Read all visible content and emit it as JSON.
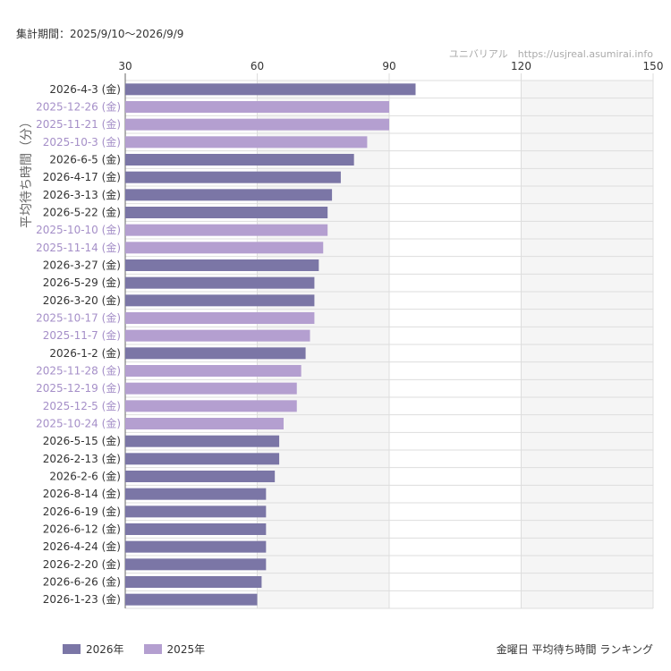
{
  "header": {
    "period": "集計期間：2025/9/10〜2026/9/9",
    "source": "ユニバリアル　https://usjreal.asumirai.info"
  },
  "caption": "金曜日 平均待ち時間 ランキング",
  "colors": {
    "2026": "#7b76a6",
    "2025": "#b49fd0",
    "label_2026": "#333333",
    "label_2025": "#a58fc8",
    "grid": "#dddddd",
    "band": "#f5f5f5"
  },
  "chart_data": {
    "type": "bar",
    "orientation": "horizontal",
    "ylabel": "平均待ち時間（分）",
    "xlim": [
      30,
      150
    ],
    "xticks": [
      "30",
      "60",
      "90",
      "120",
      "150"
    ],
    "legend_position": "bottom-left",
    "categories": [
      "2026-4-3 (金)",
      "2025-12-26 (金)",
      "2025-11-21 (金)",
      "2025-10-3 (金)",
      "2026-6-5 (金)",
      "2026-4-17 (金)",
      "2026-3-13 (金)",
      "2026-5-22 (金)",
      "2025-10-10 (金)",
      "2025-11-14 (金)",
      "2026-3-27 (金)",
      "2026-5-29 (金)",
      "2026-3-20 (金)",
      "2025-10-17 (金)",
      "2025-11-7 (金)",
      "2026-1-2 (金)",
      "2025-11-28 (金)",
      "2025-12-19 (金)",
      "2025-12-5 (金)",
      "2025-10-24 (金)",
      "2026-5-15 (金)",
      "2026-2-13 (金)",
      "2026-2-6 (金)",
      "2026-8-14 (金)",
      "2026-6-19 (金)",
      "2026-6-12 (金)",
      "2026-4-24 (金)",
      "2026-2-20 (金)",
      "2026-6-26 (金)",
      "2026-1-23 (金)"
    ],
    "values": [
      96,
      90,
      90,
      85,
      82,
      79,
      77,
      76,
      76,
      75,
      74,
      73,
      73,
      73,
      72,
      71,
      70,
      69,
      69,
      66,
      65,
      65,
      64,
      62,
      62,
      62,
      62,
      62,
      61,
      60
    ],
    "groups": [
      "2026",
      "2025",
      "2025",
      "2025",
      "2026",
      "2026",
      "2026",
      "2026",
      "2025",
      "2025",
      "2026",
      "2026",
      "2026",
      "2025",
      "2025",
      "2026",
      "2025",
      "2025",
      "2025",
      "2025",
      "2026",
      "2026",
      "2026",
      "2026",
      "2026",
      "2026",
      "2026",
      "2026",
      "2026",
      "2026"
    ],
    "series": [
      {
        "name": "2026年",
        "group": "2026"
      },
      {
        "name": "2025年",
        "group": "2025"
      }
    ]
  }
}
